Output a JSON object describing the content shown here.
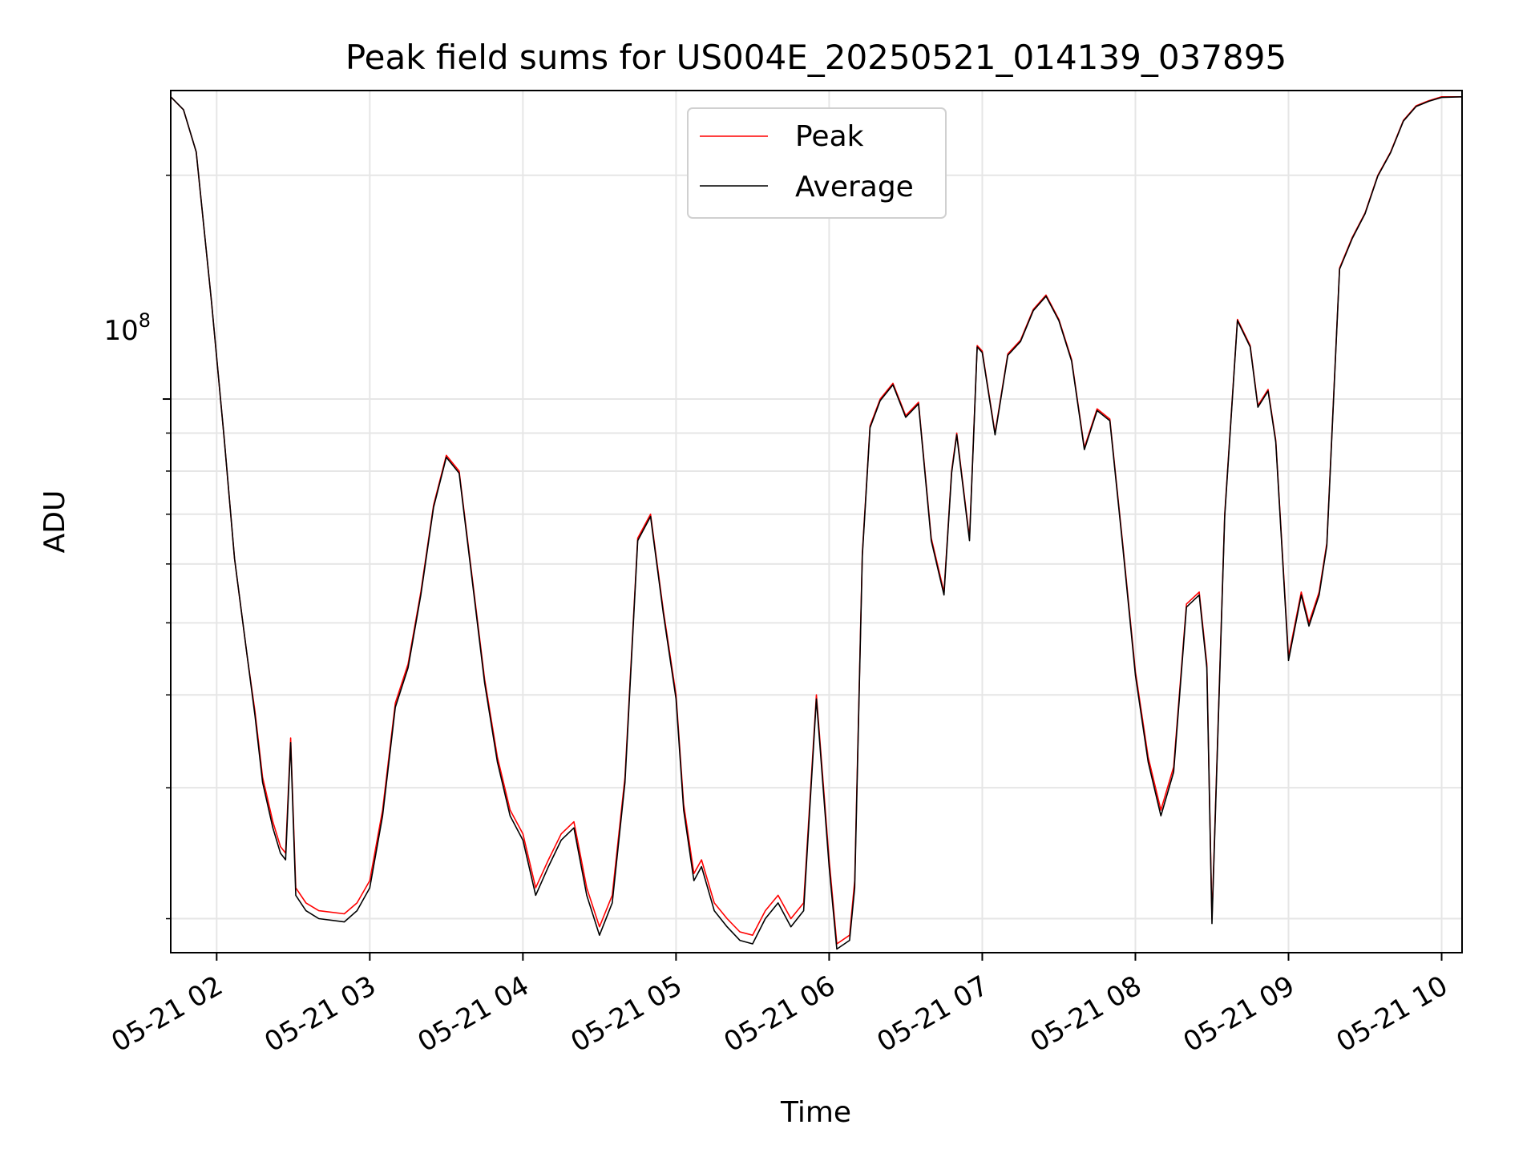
{
  "chart_data": {
    "type": "line",
    "title": "Peak field sums for US004E_20250521_014139_037895",
    "xlabel": "Time",
    "ylabel": "ADU",
    "y_scale": "log",
    "ylim": [
      18000000,
      260000000
    ],
    "y_major_tick_label": "10",
    "y_major_tick_exponent": "8",
    "y_major_tick_value": 100000000,
    "xlim_hours_utc": [
      "2025-05-21 01:42",
      "2025-05-21 10:08"
    ],
    "x_tick_labels": [
      "05-21 02",
      "05-21 03",
      "05-21 04",
      "05-21 05",
      "05-21 06",
      "05-21 07",
      "05-21 08",
      "05-21 09",
      "05-21 10"
    ],
    "grid": true,
    "legend_placement": "upper center",
    "colors": {
      "peak": "#ff0000",
      "average": "#000000"
    },
    "series": [
      {
        "name": "Peak",
        "color": "#ff0000",
        "x": [
          "2025-05-21 01:42",
          "2025-05-21 01:47",
          "2025-05-21 01:52",
          "2025-05-21 01:58",
          "2025-05-21 02:03",
          "2025-05-21 02:07",
          "2025-05-21 02:12",
          "2025-05-21 02:15",
          "2025-05-21 02:18",
          "2025-05-21 02:22",
          "2025-05-21 02:25",
          "2025-05-21 02:27",
          "2025-05-21 02:29",
          "2025-05-21 02:31",
          "2025-05-21 02:35",
          "2025-05-21 02:40",
          "2025-05-21 02:50",
          "2025-05-21 02:55",
          "2025-05-21 03:00",
          "2025-05-21 03:05",
          "2025-05-21 03:10",
          "2025-05-21 03:15",
          "2025-05-21 03:20",
          "2025-05-21 03:25",
          "2025-05-21 03:30",
          "2025-05-21 03:35",
          "2025-05-21 03:40",
          "2025-05-21 03:45",
          "2025-05-21 03:50",
          "2025-05-21 03:55",
          "2025-05-21 04:00",
          "2025-05-21 04:05",
          "2025-05-21 04:10",
          "2025-05-21 04:15",
          "2025-05-21 04:20",
          "2025-05-21 04:25",
          "2025-05-21 04:30",
          "2025-05-21 04:35",
          "2025-05-21 04:40",
          "2025-05-21 04:45",
          "2025-05-21 04:50",
          "2025-05-21 04:55",
          "2025-05-21 05:00",
          "2025-05-21 05:03",
          "2025-05-21 05:07",
          "2025-05-21 05:10",
          "2025-05-21 05:15",
          "2025-05-21 05:20",
          "2025-05-21 05:25",
          "2025-05-21 05:30",
          "2025-05-21 05:35",
          "2025-05-21 05:40",
          "2025-05-21 05:45",
          "2025-05-21 05:50",
          "2025-05-21 05:55",
          "2025-05-21 06:00",
          "2025-05-21 06:03",
          "2025-05-21 06:08",
          "2025-05-21 06:10",
          "2025-05-21 06:13",
          "2025-05-21 06:16",
          "2025-05-21 06:20",
          "2025-05-21 06:25",
          "2025-05-21 06:30",
          "2025-05-21 06:35",
          "2025-05-21 06:40",
          "2025-05-21 06:45",
          "2025-05-21 06:48",
          "2025-05-21 06:50",
          "2025-05-21 06:55",
          "2025-05-21 06:58",
          "2025-05-21 07:00",
          "2025-05-21 07:05",
          "2025-05-21 07:10",
          "2025-05-21 07:15",
          "2025-05-21 07:20",
          "2025-05-21 07:25",
          "2025-05-21 07:30",
          "2025-05-21 07:35",
          "2025-05-21 07:40",
          "2025-05-21 07:45",
          "2025-05-21 07:50",
          "2025-05-21 07:55",
          "2025-05-21 08:00",
          "2025-05-21 08:05",
          "2025-05-21 08:10",
          "2025-05-21 08:15",
          "2025-05-21 08:20",
          "2025-05-21 08:25",
          "2025-05-21 08:28",
          "2025-05-21 08:30",
          "2025-05-21 08:35",
          "2025-05-21 08:40",
          "2025-05-21 08:45",
          "2025-05-21 08:48",
          "2025-05-21 08:52",
          "2025-05-21 08:55",
          "2025-05-21 09:00",
          "2025-05-21 09:05",
          "2025-05-21 09:08",
          "2025-05-21 09:12",
          "2025-05-21 09:15",
          "2025-05-21 09:20",
          "2025-05-21 09:25",
          "2025-05-21 09:30",
          "2025-05-21 09:35",
          "2025-05-21 09:40",
          "2025-05-21 09:45",
          "2025-05-21 09:50",
          "2025-05-21 09:55",
          "2025-05-21 10:00",
          "2025-05-21 10:08"
        ],
        "values": [
          255000000,
          245000000,
          215000000,
          135000000,
          88000000,
          61000000,
          45000000,
          38000000,
          31000000,
          27000000,
          25000000,
          24500000,
          35000000,
          22000000,
          21000000,
          20500000,
          20300000,
          21000000,
          22500000,
          28000000,
          39000000,
          44000000,
          55000000,
          72000000,
          84000000,
          80000000,
          58000000,
          42000000,
          33000000,
          28000000,
          26000000,
          22000000,
          24000000,
          26000000,
          27000000,
          22000000,
          19500000,
          21500000,
          31000000,
          65000000,
          70000000,
          52000000,
          40000000,
          28500000,
          23000000,
          24000000,
          21000000,
          20000000,
          19200000,
          19000000,
          20500000,
          21500000,
          20000000,
          21000000,
          40000000,
          24000000,
          18500000,
          19000000,
          22500000,
          62000000,
          92000000,
          100000000,
          105000000,
          95000000,
          99000000,
          65000000,
          55000000,
          80000000,
          90000000,
          65000000,
          118000000,
          116000000,
          90000000,
          115000000,
          120000000,
          132000000,
          138000000,
          128000000,
          113000000,
          86000000,
          97000000,
          94000000,
          64000000,
          43000000,
          33000000,
          28000000,
          32000000,
          53000000,
          55000000,
          44000000,
          20000000,
          70000000,
          128000000,
          118000000,
          98000000,
          103000000,
          88000000,
          45000000,
          55000000,
          50000000,
          55000000,
          64000000,
          150000000,
          165000000,
          178000000,
          200000000,
          215000000,
          237000000,
          248000000,
          252000000,
          255000000,
          255000000
        ]
      },
      {
        "name": "Average",
        "color": "#000000",
        "x": [
          "2025-05-21 01:42",
          "2025-05-21 01:47",
          "2025-05-21 01:52",
          "2025-05-21 01:58",
          "2025-05-21 02:03",
          "2025-05-21 02:07",
          "2025-05-21 02:12",
          "2025-05-21 02:15",
          "2025-05-21 02:18",
          "2025-05-21 02:22",
          "2025-05-21 02:25",
          "2025-05-21 02:27",
          "2025-05-21 02:29",
          "2025-05-21 02:31",
          "2025-05-21 02:35",
          "2025-05-21 02:40",
          "2025-05-21 02:50",
          "2025-05-21 02:55",
          "2025-05-21 03:00",
          "2025-05-21 03:05",
          "2025-05-21 03:10",
          "2025-05-21 03:15",
          "2025-05-21 03:20",
          "2025-05-21 03:25",
          "2025-05-21 03:30",
          "2025-05-21 03:35",
          "2025-05-21 03:40",
          "2025-05-21 03:45",
          "2025-05-21 03:50",
          "2025-05-21 03:55",
          "2025-05-21 04:00",
          "2025-05-21 04:05",
          "2025-05-21 04:10",
          "2025-05-21 04:15",
          "2025-05-21 04:20",
          "2025-05-21 04:25",
          "2025-05-21 04:30",
          "2025-05-21 04:35",
          "2025-05-21 04:40",
          "2025-05-21 04:45",
          "2025-05-21 04:50",
          "2025-05-21 04:55",
          "2025-05-21 05:00",
          "2025-05-21 05:03",
          "2025-05-21 05:07",
          "2025-05-21 05:10",
          "2025-05-21 05:15",
          "2025-05-21 05:20",
          "2025-05-21 05:25",
          "2025-05-21 05:30",
          "2025-05-21 05:35",
          "2025-05-21 05:40",
          "2025-05-21 05:45",
          "2025-05-21 05:50",
          "2025-05-21 05:55",
          "2025-05-21 06:00",
          "2025-05-21 06:03",
          "2025-05-21 06:08",
          "2025-05-21 06:10",
          "2025-05-21 06:13",
          "2025-05-21 06:16",
          "2025-05-21 06:20",
          "2025-05-21 06:25",
          "2025-05-21 06:30",
          "2025-05-21 06:35",
          "2025-05-21 06:40",
          "2025-05-21 06:45",
          "2025-05-21 06:48",
          "2025-05-21 06:50",
          "2025-05-21 06:55",
          "2025-05-21 06:58",
          "2025-05-21 07:00",
          "2025-05-21 07:05",
          "2025-05-21 07:10",
          "2025-05-21 07:15",
          "2025-05-21 07:20",
          "2025-05-21 07:25",
          "2025-05-21 07:30",
          "2025-05-21 07:35",
          "2025-05-21 07:40",
          "2025-05-21 07:45",
          "2025-05-21 07:50",
          "2025-05-21 07:55",
          "2025-05-21 08:00",
          "2025-05-21 08:05",
          "2025-05-21 08:10",
          "2025-05-21 08:15",
          "2025-05-21 08:20",
          "2025-05-21 08:25",
          "2025-05-21 08:28",
          "2025-05-21 08:30",
          "2025-05-21 08:35",
          "2025-05-21 08:40",
          "2025-05-21 08:45",
          "2025-05-21 08:48",
          "2025-05-21 08:52",
          "2025-05-21 08:55",
          "2025-05-21 09:00",
          "2025-05-21 09:05",
          "2025-05-21 09:08",
          "2025-05-21 09:12",
          "2025-05-21 09:15",
          "2025-05-21 09:20",
          "2025-05-21 09:25",
          "2025-05-21 09:30",
          "2025-05-21 09:35",
          "2025-05-21 09:40",
          "2025-05-21 09:45",
          "2025-05-21 09:50",
          "2025-05-21 09:55",
          "2025-05-21 10:00",
          "2025-05-21 10:08"
        ],
        "values": [
          255000000,
          245000000,
          215000000,
          135000000,
          88000000,
          61000000,
          45000000,
          37500000,
          30500000,
          26500000,
          24500000,
          24000000,
          34500000,
          21500000,
          20500000,
          20000000,
          19800000,
          20500000,
          22000000,
          27500000,
          38500000,
          43500000,
          54500000,
          71500000,
          83500000,
          79500000,
          57500000,
          41500000,
          32500000,
          27500000,
          25500000,
          21500000,
          23500000,
          25500000,
          26500000,
          21500000,
          19000000,
          21000000,
          30500000,
          64500000,
          69500000,
          51500000,
          39500000,
          28000000,
          22500000,
          23500000,
          20500000,
          19500000,
          18700000,
          18500000,
          20000000,
          21000000,
          19500000,
          20500000,
          39500000,
          23500000,
          18200000,
          18700000,
          22000000,
          61500000,
          91500000,
          99500000,
          104500000,
          94500000,
          98500000,
          64500000,
          54500000,
          79500000,
          89500000,
          64500000,
          117500000,
          115500000,
          89500000,
          114500000,
          119500000,
          131500000,
          137500000,
          127500000,
          112500000,
          85500000,
          96500000,
          93500000,
          63500000,
          42500000,
          32500000,
          27500000,
          31500000,
          52500000,
          54500000,
          43500000,
          19700000,
          69500000,
          127500000,
          117500000,
          97500000,
          102500000,
          87500000,
          44500000,
          54500000,
          49500000,
          54500000,
          63500000,
          149500000,
          164500000,
          177500000,
          199500000,
          214500000,
          236500000,
          247500000,
          251500000,
          254500000,
          255000000
        ]
      }
    ]
  }
}
